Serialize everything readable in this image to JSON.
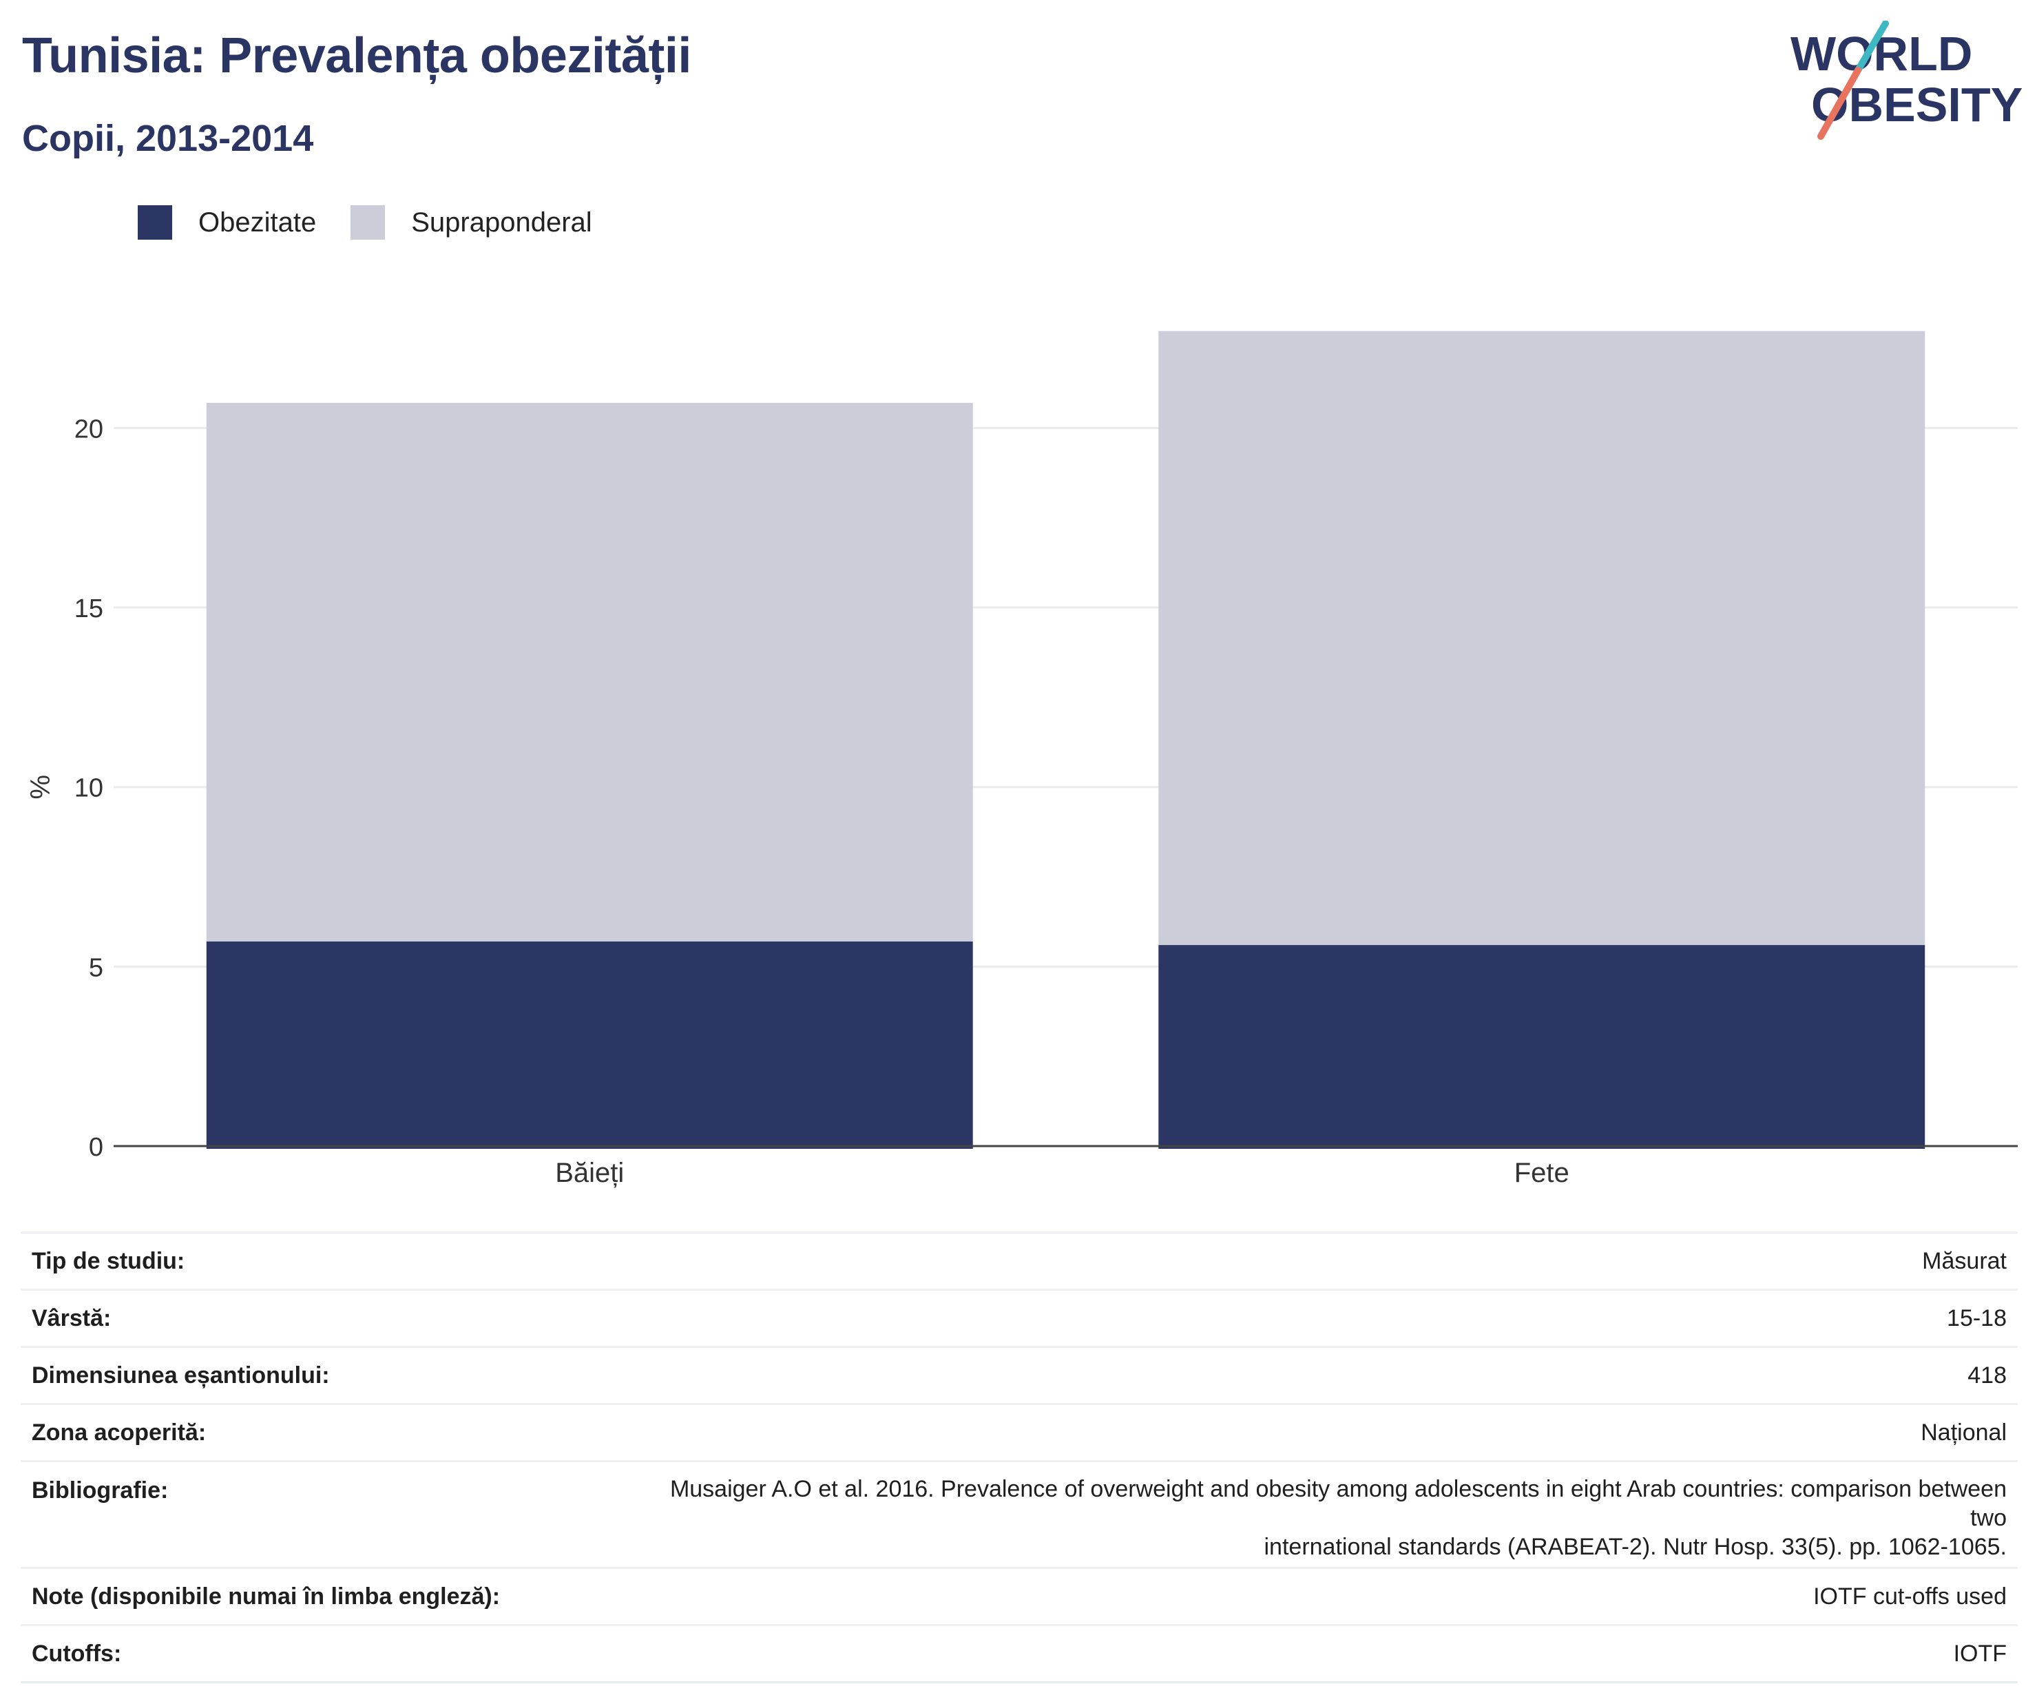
{
  "header": {
    "title": "Tunisia: Prevalența obezității",
    "subtitle": "Copii, 2013-2014"
  },
  "logo": {
    "line1": "WORLD",
    "line2": "OBESITY"
  },
  "colors": {
    "obesity": "#2b3664",
    "overweight": "#cbcdd8",
    "title": "#2b3564",
    "logo_teal": "#3fb8c4",
    "logo_coral": "#e8735f"
  },
  "chart_data": {
    "type": "bar",
    "stacked": true,
    "categories": [
      "Băieți",
      "Fete"
    ],
    "series": [
      {
        "name": "Obezitate",
        "values": [
          5.7,
          5.6
        ]
      },
      {
        "name": "Supraponderal",
        "values": [
          15.0,
          17.1
        ]
      }
    ],
    "ylabel": "%",
    "ylim": [
      0,
      23
    ],
    "yticks": [
      0,
      5,
      10,
      15,
      20
    ],
    "grid": true,
    "legend_position": "top-left"
  },
  "legend": [
    {
      "label": "Obezitate",
      "color": "#2b3664"
    },
    {
      "label": "Supraponderal",
      "color": "#cbcdd8"
    }
  ],
  "meta": {
    "study_type": {
      "label": "Tip de studiu:",
      "value": "Măsurat"
    },
    "age": {
      "label": "Vârstă:",
      "value": "15-18"
    },
    "sample_size": {
      "label": "Dimensiunea eșantionului:",
      "value": "418"
    },
    "coverage": {
      "label": "Zona acoperită:",
      "value": "Național"
    },
    "bibliography": {
      "label": "Bibliografie:",
      "value_line1": "Musaiger A.O et al. 2016. Prevalence of overweight and obesity among adolescents in eight Arab countries: comparison between two",
      "value_line2": "international standards (ARABEAT-2). Nutr Hosp. 33(5). pp. 1062-1065."
    },
    "notes": {
      "label": "Note (disponibile numai în limba engleză):",
      "value": "IOTF cut-offs used"
    },
    "cutoffs": {
      "label": "Cutoffs:",
      "value": "IOTF"
    }
  }
}
